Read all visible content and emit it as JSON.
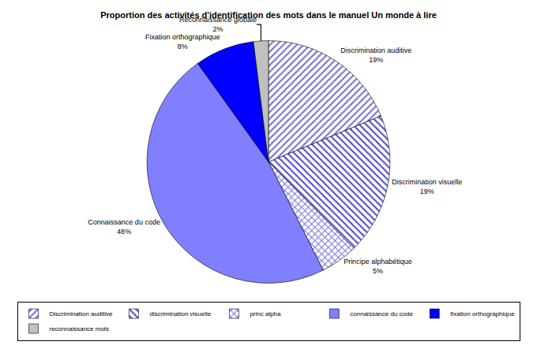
{
  "chart_data": {
    "type": "pie",
    "title": "Proportion des activités d'identification des mots dans le manuel Un monde à lire",
    "categories": [
      "Discrimination auditive",
      "discrimination visuelle",
      "princ alpha",
      "connaissance du code",
      "fixation orthographique",
      "reconnaissance mots"
    ],
    "slice_labels": [
      "Discrimination auditive",
      "Discrimination visuelle",
      "Principe alphabétique",
      "Connaissance du code",
      "Fixation orthographique",
      "Reconnaissance globale"
    ],
    "values": [
      19,
      19,
      5,
      48,
      8,
      2
    ],
    "value_labels": [
      "19%",
      "19%",
      "5%",
      "48%",
      "8%",
      "2%"
    ],
    "colors": [
      "#6f6fd8",
      "#4a4ad0",
      "#7a7ae0",
      "#8080ff",
      "#0000ff",
      "#c0c0c0"
    ],
    "data_labels": true,
    "legend": "bottom"
  }
}
